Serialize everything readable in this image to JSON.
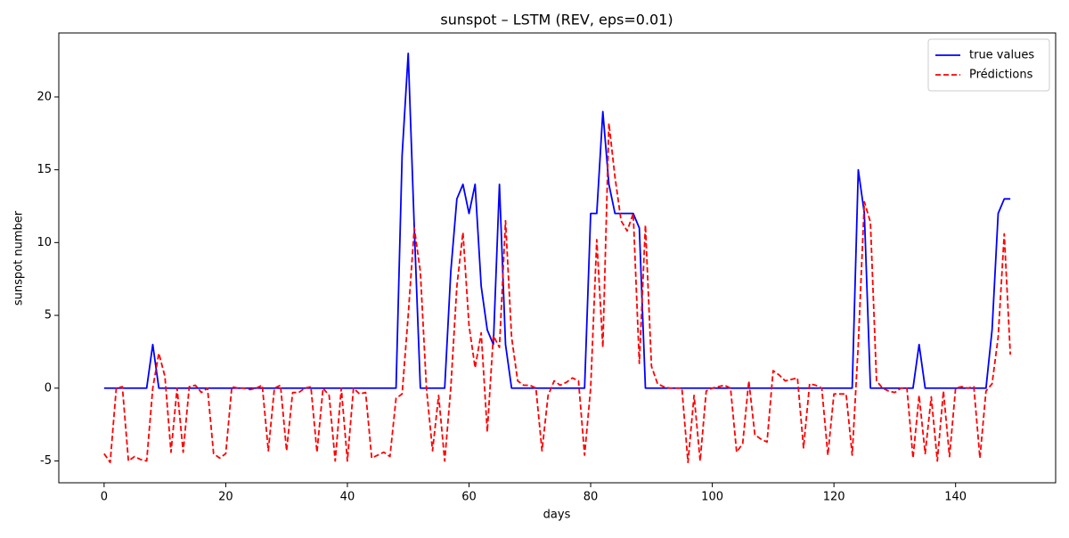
{
  "chart_data": {
    "type": "line",
    "title": "sunspot – LSTM (REV, eps=0.01)",
    "x_label": "days",
    "y_label": "sunspot number",
    "x": [
      0,
      1,
      2,
      3,
      4,
      5,
      6,
      7,
      8,
      9,
      10,
      11,
      12,
      13,
      14,
      15,
      16,
      17,
      18,
      19,
      20,
      21,
      22,
      23,
      24,
      25,
      26,
      27,
      28,
      29,
      30,
      31,
      32,
      33,
      34,
      35,
      36,
      37,
      38,
      39,
      40,
      41,
      42,
      43,
      44,
      45,
      46,
      47,
      48,
      49,
      50,
      51,
      52,
      53,
      54,
      55,
      56,
      57,
      58,
      59,
      60,
      61,
      62,
      63,
      64,
      65,
      66,
      67,
      68,
      69,
      70,
      71,
      72,
      73,
      74,
      75,
      76,
      77,
      78,
      79,
      80,
      81,
      82,
      83,
      84,
      85,
      86,
      87,
      88,
      89,
      90,
      91,
      92,
      93,
      94,
      95,
      96,
      97,
      98,
      99,
      100,
      101,
      102,
      103,
      104,
      105,
      106,
      107,
      108,
      109,
      110,
      111,
      112,
      113,
      114,
      115,
      116,
      117,
      118,
      119,
      120,
      121,
      122,
      123,
      124,
      125,
      126,
      127,
      128,
      129,
      130,
      131,
      132,
      133,
      134,
      135,
      136,
      137,
      138,
      139,
      140,
      141,
      142,
      143,
      144,
      145,
      146,
      147,
      148,
      149
    ],
    "series": [
      {
        "name": "true values",
        "color": "#0000ff",
        "style": "solid",
        "values": [
          0,
          0,
          0,
          0,
          0,
          0,
          0,
          0,
          3,
          0,
          0,
          0,
          0,
          0,
          0,
          0,
          0,
          0,
          0,
          0,
          0,
          0,
          0,
          0,
          0,
          0,
          0,
          0,
          0,
          0,
          0,
          0,
          0,
          0,
          0,
          0,
          0,
          0,
          0,
          0,
          0,
          0,
          0,
          0,
          0,
          0,
          0,
          0,
          0,
          16,
          23,
          11,
          0,
          0,
          0,
          0,
          0,
          8,
          13,
          14,
          12,
          14,
          7,
          4,
          3,
          14,
          3,
          0,
          0,
          0,
          0,
          0,
          0,
          0,
          0,
          0,
          0,
          0,
          0,
          0,
          12,
          12,
          19,
          14,
          12,
          12,
          12,
          12,
          11,
          0,
          0,
          0,
          0,
          0,
          0,
          0,
          0,
          0,
          0,
          0,
          0,
          0,
          0,
          0,
          0,
          0,
          0,
          0,
          0,
          0,
          0,
          0,
          0,
          0,
          0,
          0,
          0,
          0,
          0,
          0,
          0,
          0,
          0,
          0,
          15,
          12,
          0,
          0,
          0,
          0,
          0,
          0,
          0,
          0,
          3,
          0,
          0,
          0,
          0,
          0,
          0,
          0,
          0,
          0,
          0,
          0,
          4,
          12,
          13,
          13
        ]
      },
      {
        "name": "Prédictions",
        "color": "#ff0000",
        "style": "dashed",
        "values": [
          -4.5,
          -5.1,
          0,
          0.1,
          -5,
          -4.7,
          -4.9,
          -5,
          0,
          2.4,
          0.8,
          -4.4,
          0,
          -4.4,
          0.1,
          0.2,
          -0.3,
          0,
          -4.5,
          -4.8,
          -4.5,
          0.1,
          0,
          0,
          -0.1,
          0,
          0.2,
          -4.3,
          0,
          0.2,
          -4.3,
          -0.3,
          -0.3,
          0,
          0.1,
          -4.4,
          0,
          -0.5,
          -5,
          0,
          -5,
          0,
          -0.4,
          -0.3,
          -4.8,
          -4.6,
          -4.4,
          -4.7,
          -0.7,
          -0.4,
          5,
          11,
          8,
          0,
          -4.3,
          -0.5,
          -5,
          0,
          7,
          10.7,
          4.3,
          1.4,
          3.8,
          -3,
          3.6,
          2.8,
          11.5,
          3.5,
          0.5,
          0.2,
          0.2,
          0,
          -4.3,
          -0.5,
          0.5,
          0.2,
          0.4,
          0.7,
          0.5,
          -4.6,
          0,
          10.2,
          2.8,
          18.2,
          14.5,
          11.5,
          10.8,
          12,
          1.7,
          11.2,
          1.5,
          0.3,
          0.1,
          0,
          0,
          0,
          -5.1,
          -0.5,
          -5,
          -0.2,
          0,
          0.1,
          0.2,
          0,
          -4.4,
          -3.8,
          0.5,
          -3.2,
          -3.5,
          -3.7,
          1.2,
          0.9,
          0.5,
          0.6,
          0.7,
          -4.1,
          0.3,
          0.2,
          0,
          -4.6,
          -0.4,
          -0.4,
          -0.4,
          -4.6,
          3,
          12.8,
          11.4,
          0.5,
          0,
          -0.2,
          -0.3,
          0,
          0,
          -4.8,
          -0.5,
          -4.5,
          -0.6,
          -5,
          -0.2,
          -4.7,
          0,
          0.1,
          0,
          0.1,
          -4.8,
          -0.2,
          0.3,
          3.5,
          10.6,
          2.3
        ]
      }
    ],
    "xlim": [
      -7.45,
      156.45
    ],
    "xticks": [
      0,
      20,
      40,
      60,
      80,
      100,
      120,
      140
    ],
    "ylim": [
      -6.5,
      24.4
    ],
    "yticks": [
      -5,
      0,
      5,
      10,
      15,
      20
    ],
    "grid": false,
    "legend": "upper right"
  }
}
